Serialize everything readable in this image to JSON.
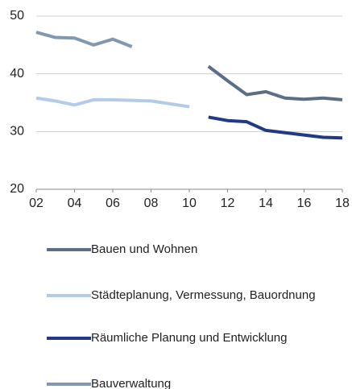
{
  "chart_data": {
    "type": "line",
    "x": [
      2,
      3,
      4,
      5,
      6,
      7,
      8,
      9,
      10,
      11,
      12,
      13,
      14,
      15,
      16,
      17,
      18
    ],
    "xlim": [
      2,
      18
    ],
    "xticks": [
      {
        "value": 2,
        "label": "02"
      },
      {
        "value": 4,
        "label": "04"
      },
      {
        "value": 6,
        "label": "06"
      },
      {
        "value": 8,
        "label": "08"
      },
      10,
      12,
      14,
      16,
      18
    ],
    "ylim": [
      20,
      50
    ],
    "yticks": [
      20,
      30,
      40,
      50
    ],
    "grid": true,
    "series": [
      {
        "name": "Bauen und Wohnen",
        "color": "#5a6f87",
        "values": [
          null,
          null,
          null,
          null,
          null,
          null,
          null,
          null,
          null,
          41.3,
          38.8,
          36.4,
          36.9,
          35.8,
          35.6,
          35.8,
          35.5
        ]
      },
      {
        "name": "Städteplanung, Vermessung, Bauordnung",
        "color": "#b3cbe6",
        "values": [
          35.8,
          35.3,
          34.6,
          35.5,
          35.5,
          35.4,
          35.3,
          34.8,
          34.3,
          null,
          null,
          null,
          null,
          null,
          null,
          null,
          null
        ]
      },
      {
        "name": "Räumliche Planung und Entwicklung",
        "color": "#223a86",
        "values": [
          null,
          null,
          null,
          null,
          null,
          null,
          null,
          null,
          null,
          32.5,
          31.9,
          31.7,
          30.2,
          29.8,
          29.4,
          29.0,
          28.9
        ]
      },
      {
        "name": "Bauverwaltung",
        "color": "#8198b0",
        "values": [
          47.2,
          46.3,
          46.2,
          45.0,
          46.0,
          44.7,
          null,
          null,
          null,
          null,
          null,
          null,
          null,
          null,
          null,
          null,
          null
        ]
      }
    ]
  }
}
